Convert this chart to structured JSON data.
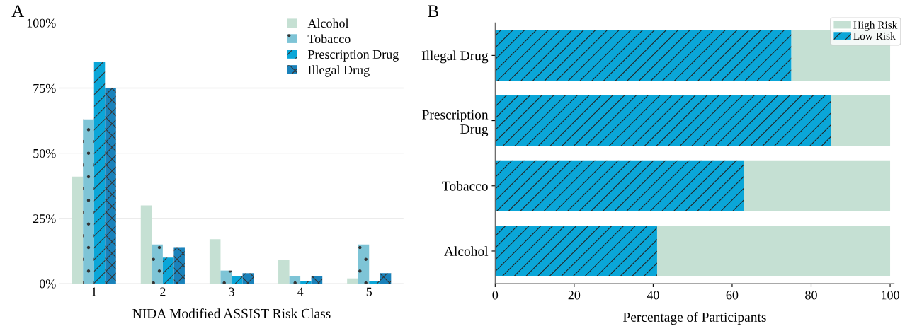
{
  "chart_data": [
    {
      "type": "bar",
      "title": "A",
      "xlabel": "NIDA Modified ASSIST Risk Class",
      "categories": [
        "1",
        "2",
        "3",
        "4",
        "5"
      ],
      "series": [
        {
          "name": "Alcohol",
          "color": "#c5e0d3",
          "values": [
            41,
            30,
            17,
            9,
            2
          ]
        },
        {
          "name": "Tobacco",
          "color": "#7ec4d6",
          "values": [
            63,
            15,
            5,
            3,
            15
          ]
        },
        {
          "name": "Prescription Drug",
          "color": "#0aa6d8",
          "values": [
            85,
            10,
            3,
            1,
            1
          ]
        },
        {
          "name": "Illegal Drug",
          "color": "#1a82bb",
          "values": [
            75,
            14,
            4,
            3,
            4
          ]
        }
      ],
      "ylim": [
        0,
        100
      ],
      "yticks": [
        {
          "value": 0,
          "label": "0%"
        },
        {
          "value": 25,
          "label": "25%"
        },
        {
          "value": 50,
          "label": "50%"
        },
        {
          "value": 75,
          "label": "75%"
        },
        {
          "value": 100,
          "label": "100%"
        }
      ],
      "grid": "y",
      "legend": "top right"
    },
    {
      "type": "bar",
      "title": "B",
      "xlabel": "Percentage of Participants",
      "orientation": "horizontal",
      "stacked": true,
      "categories": [
        "Illegal Drug",
        "Prescription\nDrug",
        "Tobacco",
        "Alcohol"
      ],
      "series": [
        {
          "name": "Low Risk",
          "color": "#0aa6d8",
          "values": [
            75,
            85,
            63,
            41
          ]
        },
        {
          "name": "High Risk",
          "color": "#c5e0d3",
          "values": [
            25,
            15,
            37,
            59
          ]
        }
      ],
      "xlim": [
        0,
        101
      ],
      "xticks": [
        0,
        20,
        40,
        60,
        80,
        100
      ],
      "legend": "top right"
    }
  ]
}
